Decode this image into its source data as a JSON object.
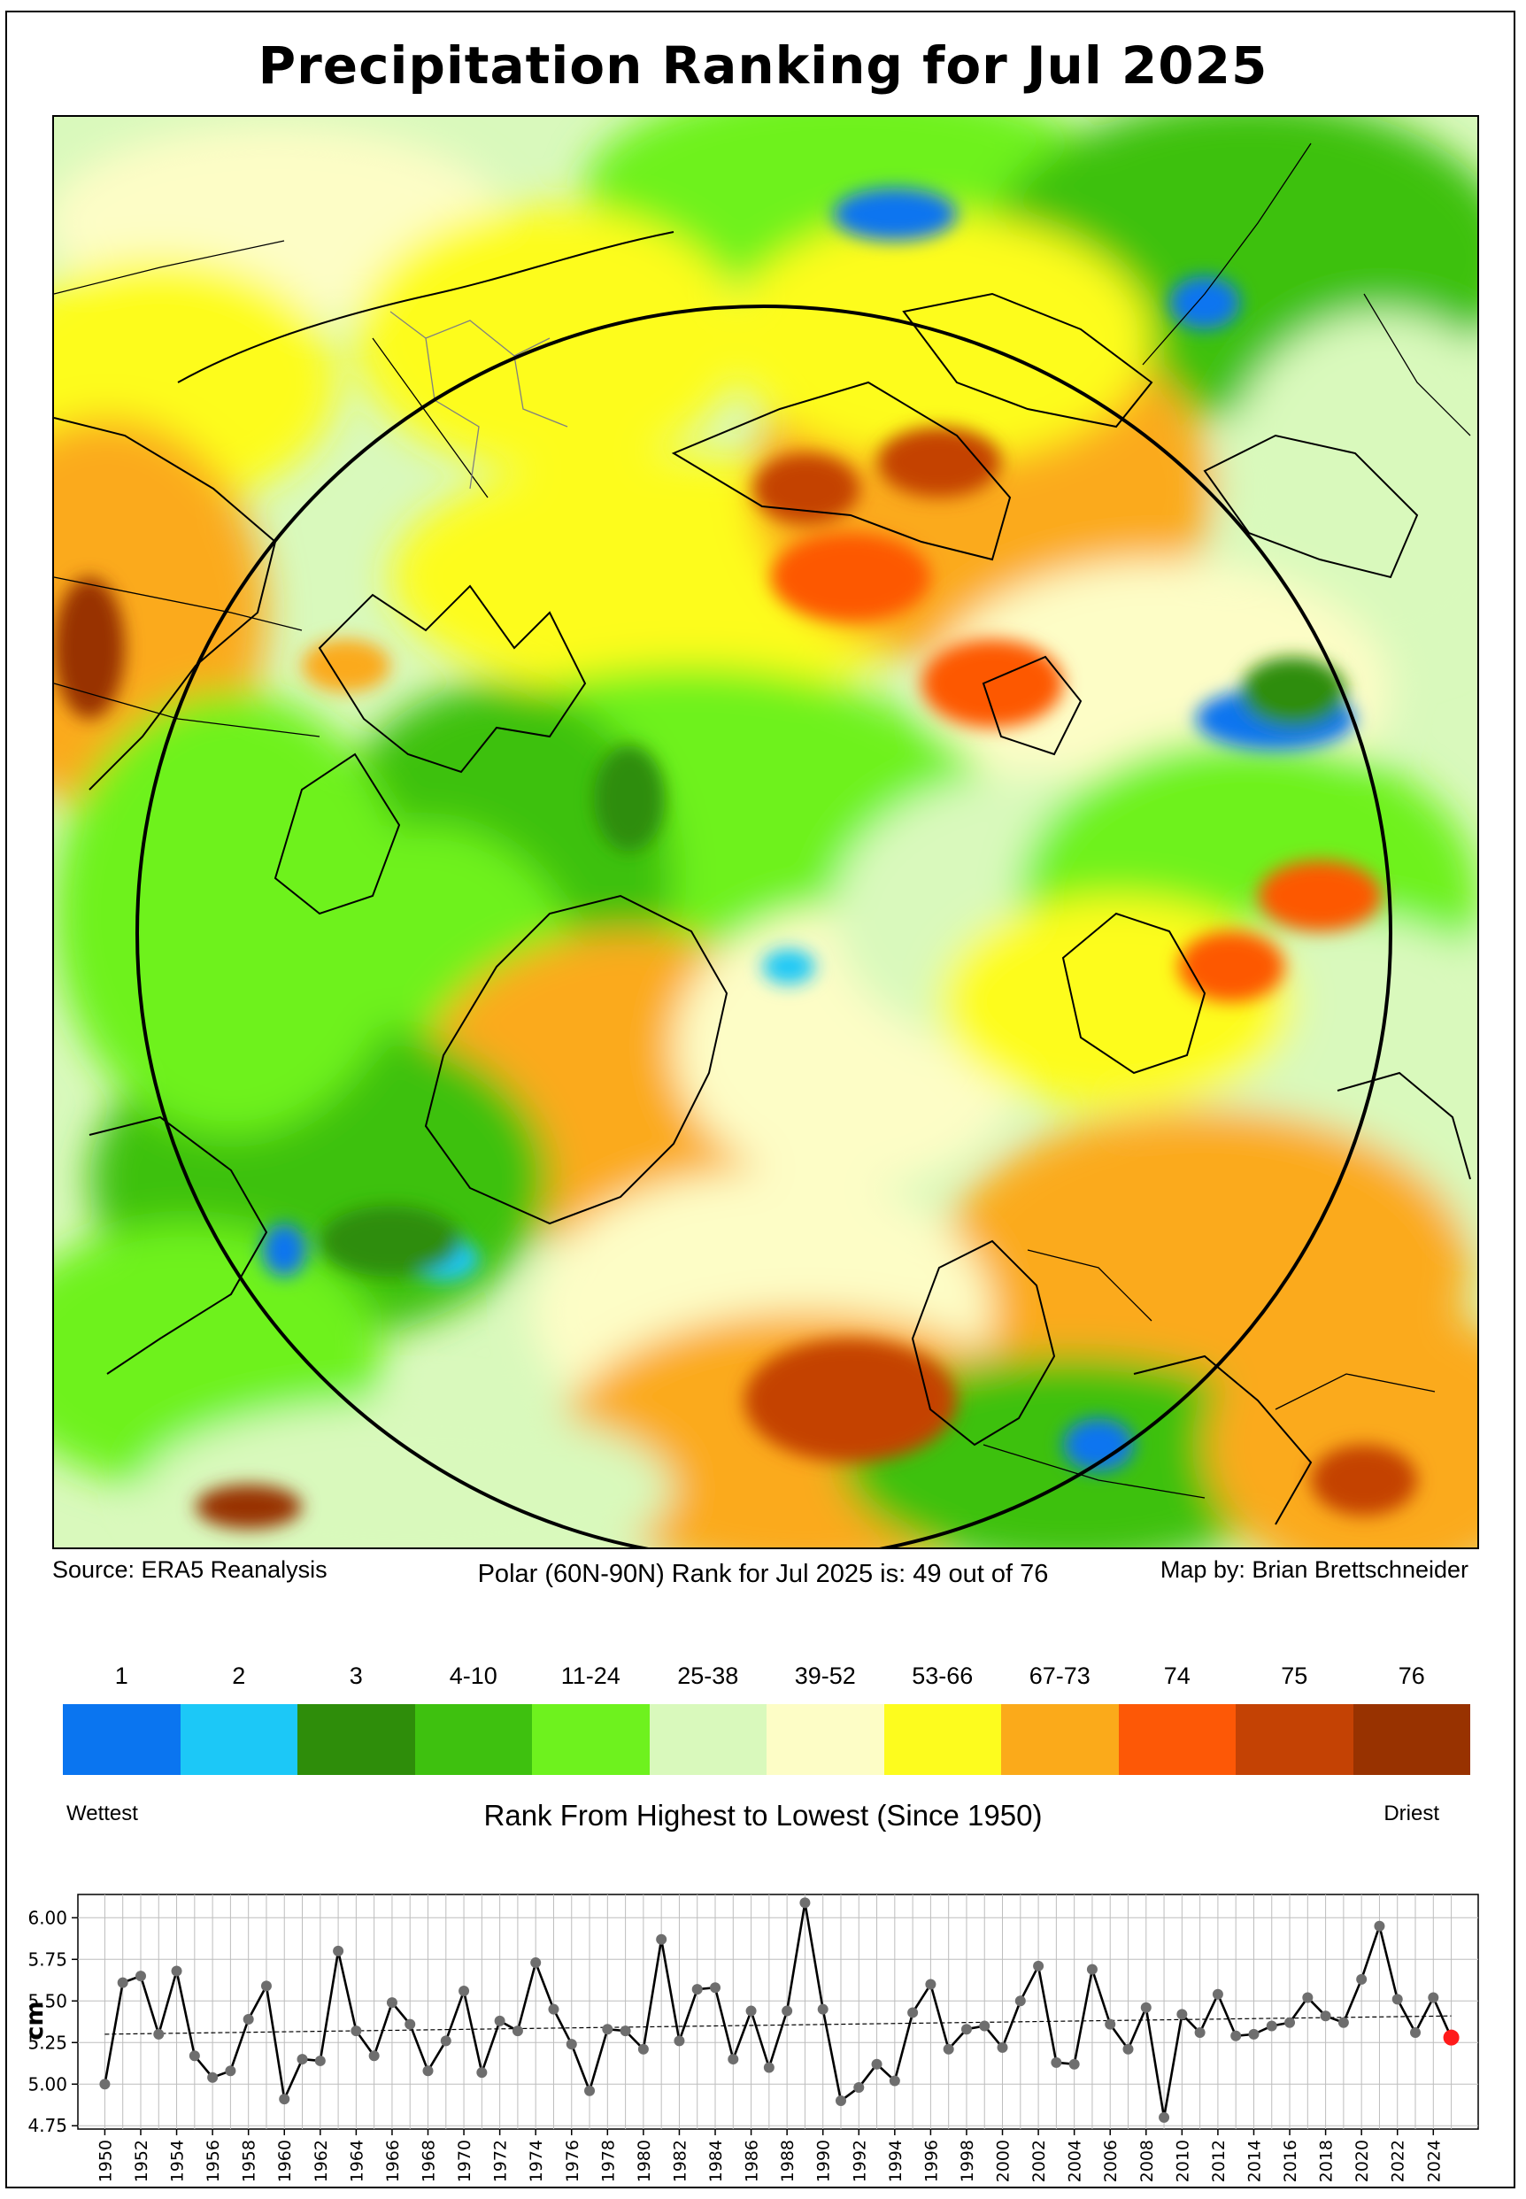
{
  "title": "Precipitation Ranking for Jul 2025",
  "source_text": "Source: ERA5 Reanalysis",
  "rank_text": "Polar (60N-90N) Rank for Jul 2025 is: 49 out of 76",
  "credit_text": "Map by: Brian Brettschneider",
  "legend": {
    "labels": [
      "1",
      "2",
      "3",
      "4-10",
      "11-24",
      "25-38",
      "39-52",
      "53-66",
      "67-73",
      "74",
      "75",
      "76"
    ],
    "colors": [
      "#0a75f0",
      "#1cc8f7",
      "#2e8d0a",
      "#3ec10f",
      "#6ef21e",
      "#d9f9bc",
      "#fdfdc6",
      "#fdfc1e",
      "#fbaa1a",
      "#fd5806",
      "#c44204",
      "#983200"
    ],
    "wettest": "Wettest",
    "driest": "Driest",
    "title": "Rank From Highest to Lowest (Since 1950)"
  },
  "chart_data": {
    "type": "line",
    "ylabel": "cm",
    "xlabel": "",
    "ylim": [
      4.75,
      6.1
    ],
    "yticks": [
      "4.75",
      "5.00",
      "5.25",
      "5.50",
      "5.75",
      "6.00"
    ],
    "xticks": [
      "1950",
      "1952",
      "1954",
      "1956",
      "1958",
      "1960",
      "1962",
      "1964",
      "1966",
      "1968",
      "1970",
      "1972",
      "1974",
      "1976",
      "1978",
      "1980",
      "1982",
      "1984",
      "1986",
      "1988",
      "1990",
      "1992",
      "1994",
      "1996",
      "1998",
      "2000",
      "2002",
      "2004",
      "2006",
      "2008",
      "2010",
      "2012",
      "2014",
      "2016",
      "2018",
      "2020",
      "2022",
      "2024"
    ],
    "grid": true,
    "x": [
      1950,
      1951,
      1952,
      1953,
      1954,
      1955,
      1956,
      1957,
      1958,
      1959,
      1960,
      1961,
      1962,
      1963,
      1964,
      1965,
      1966,
      1967,
      1968,
      1969,
      1970,
      1971,
      1972,
      1973,
      1974,
      1975,
      1976,
      1977,
      1978,
      1979,
      1980,
      1981,
      1982,
      1983,
      1984,
      1985,
      1986,
      1987,
      1988,
      1989,
      1990,
      1991,
      1992,
      1993,
      1994,
      1995,
      1996,
      1997,
      1998,
      1999,
      2000,
      2001,
      2002,
      2003,
      2004,
      2005,
      2006,
      2007,
      2008,
      2009,
      2010,
      2011,
      2012,
      2013,
      2014,
      2015,
      2016,
      2017,
      2018,
      2019,
      2020,
      2021,
      2022,
      2023,
      2024,
      2025
    ],
    "values": [
      5.0,
      5.61,
      5.65,
      5.3,
      5.68,
      5.17,
      5.04,
      5.08,
      5.39,
      5.59,
      4.91,
      5.15,
      5.14,
      5.8,
      5.32,
      5.17,
      5.49,
      5.36,
      5.08,
      5.26,
      5.56,
      5.07,
      5.38,
      5.32,
      5.73,
      5.45,
      5.24,
      4.96,
      5.33,
      5.32,
      5.21,
      5.87,
      5.26,
      5.57,
      5.58,
      5.15,
      5.44,
      5.1,
      5.44,
      6.09,
      5.45,
      4.9,
      4.98,
      5.12,
      5.02,
      5.43,
      5.6,
      5.21,
      5.33,
      5.35,
      5.22,
      5.5,
      5.71,
      5.13,
      5.12,
      5.69,
      5.36,
      5.21,
      5.46,
      4.8,
      5.42,
      5.31,
      5.54,
      5.29,
      5.3,
      5.35,
      5.37,
      5.52,
      5.41,
      5.37,
      5.63,
      5.95,
      5.51,
      5.31,
      5.52,
      5.28
    ],
    "trend": [
      5.3,
      5.41
    ],
    "highlight_year": 2025
  }
}
